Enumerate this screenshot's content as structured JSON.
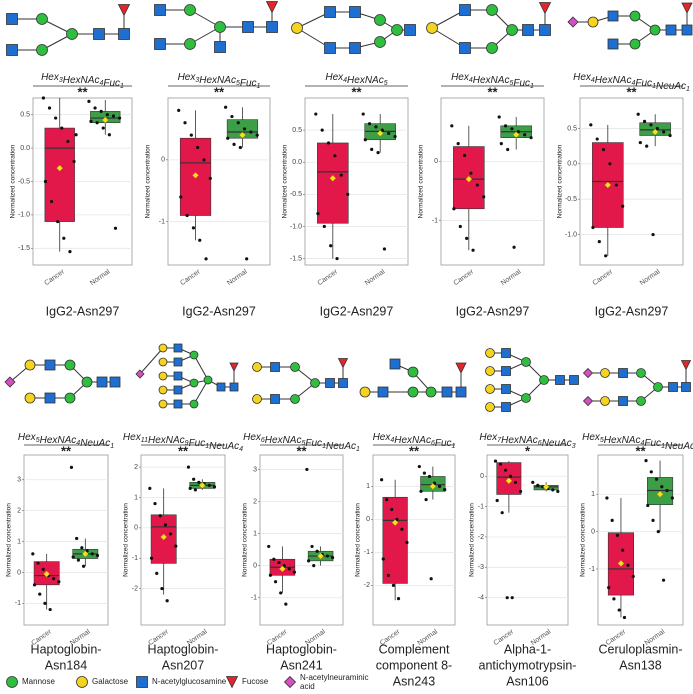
{
  "chart_data": [
    {
      "type": "box",
      "title": "Hex3HexNAc4Fuc1",
      "significance": "**",
      "ylabel": "Normalized concentration",
      "categories": [
        "Cancer",
        "Normal"
      ],
      "colors": [
        "#e3184a",
        "#3d9e48"
      ],
      "boxes": [
        {
          "low": -1.55,
          "q1": -1.1,
          "median": 0.0,
          "q3": 0.3,
          "high": 0.75,
          "mean": -0.3,
          "points": [
            0.75,
            0.6,
            0.45,
            0.3,
            0.1,
            -0.2,
            -0.5,
            -0.8,
            -1.1,
            -1.35,
            -1.55,
            0.2
          ]
        },
        {
          "low": 0.2,
          "q1": 0.38,
          "median": 0.45,
          "q3": 0.55,
          "high": 0.72,
          "mean": 0.42,
          "points": [
            0.7,
            0.6,
            0.55,
            0.5,
            0.48,
            0.45,
            0.4,
            0.38,
            0.3,
            0.2,
            -1.2
          ]
        }
      ],
      "ylim": [
        -1.75,
        0.75
      ],
      "yticks": [
        -1.5,
        {
          "value": -1,
          "label": "-1.0"
        },
        -0.5,
        {
          "value": 0,
          "label": "0.0"
        },
        0.5
      ],
      "site": [
        "IgG2-Asn297"
      ]
    },
    {
      "type": "box",
      "title": "Hex3HexNAc5Fuc1",
      "significance": "**",
      "ylabel": "Normalized concentration",
      "categories": [
        "Cancer",
        "Normal"
      ],
      "colors": [
        "#e3184a",
        "#3d9e48"
      ],
      "boxes": [
        {
          "low": -1.3,
          "q1": -0.9,
          "median": -0.05,
          "q3": 0.35,
          "high": 0.8,
          "mean": -0.25,
          "points": [
            0.8,
            0.6,
            0.4,
            0.2,
            0,
            -0.3,
            -0.6,
            -0.9,
            -1.1,
            -1.3,
            -1.6
          ]
        },
        {
          "low": 0.2,
          "q1": 0.35,
          "median": 0.45,
          "q3": 0.65,
          "high": 0.85,
          "mean": 0.4,
          "points": [
            0.85,
            0.7,
            0.6,
            0.5,
            0.45,
            0.4,
            0.35,
            0.25,
            0.2,
            -1.6
          ]
        }
      ],
      "ylim": [
        -1.7,
        1.0
      ],
      "yticks": [
        -1,
        0
      ],
      "site": [
        "IgG2-Asn297"
      ]
    },
    {
      "type": "box",
      "title": "Hex4HexNAc5",
      "significance": "**",
      "ylabel": "Normalized concentration",
      "categories": [
        "Cancer",
        "Normal"
      ],
      "colors": [
        "#e3184a",
        "#3d9e48"
      ],
      "boxes": [
        {
          "low": -1.5,
          "q1": -0.95,
          "median": -0.15,
          "q3": 0.3,
          "high": 0.75,
          "mean": -0.25,
          "points": [
            0.75,
            0.5,
            0.3,
            0.1,
            -0.2,
            -0.5,
            -0.8,
            -1.0,
            -1.3,
            -1.5
          ]
        },
        {
          "low": 0.15,
          "q1": 0.35,
          "median": 0.48,
          "q3": 0.6,
          "high": 0.75,
          "mean": 0.45,
          "points": [
            0.75,
            0.6,
            0.55,
            0.5,
            0.45,
            0.4,
            0.35,
            0.2,
            0.15,
            -1.35
          ]
        }
      ],
      "ylim": [
        -1.6,
        1.0
      ],
      "yticks": [
        -1.5,
        {
          "value": -1,
          "label": "-1.0"
        },
        -0.5,
        {
          "value": 0,
          "label": "0.0"
        },
        0.5
      ],
      "site": [
        "IgG2-Asn297"
      ]
    },
    {
      "type": "box",
      "title": "Hex4HexNAc5Fuc1",
      "significance": "**",
      "ylabel": "Normalized concentration",
      "categories": [
        "Cancer",
        "Normal"
      ],
      "colors": [
        "#e3184a",
        "#3d9e48"
      ],
      "boxes": [
        {
          "low": -1.5,
          "q1": -0.8,
          "median": -0.3,
          "q3": 0.25,
          "high": 0.6,
          "mean": -0.3,
          "points": [
            0.6,
            0.3,
            0.1,
            -0.2,
            -0.4,
            -0.6,
            -0.8,
            -1.1,
            -1.3,
            -1.5
          ]
        },
        {
          "low": 0.2,
          "q1": 0.4,
          "median": 0.5,
          "q3": 0.6,
          "high": 0.75,
          "mean": 0.45,
          "points": [
            0.75,
            0.6,
            0.55,
            0.5,
            0.45,
            0.4,
            0.3,
            0.2,
            -1.45
          ]
        }
      ],
      "ylim": [
        -1.75,
        1.07
      ],
      "yticks": [
        -1,
        0
      ],
      "site": [
        "IgG2-Asn297"
      ]
    },
    {
      "type": "box",
      "title": "Hex4HexNAc4Fuc1NeuAc1",
      "significance": "**",
      "ylabel": "Normalized concentration",
      "categories": [
        "Cancer",
        "Normal"
      ],
      "colors": [
        "#e3184a",
        "#3d9e48"
      ],
      "boxes": [
        {
          "low": -1.3,
          "q1": -0.9,
          "median": -0.25,
          "q3": 0.3,
          "high": 0.55,
          "mean": -0.3,
          "points": [
            0.55,
            0.35,
            0.2,
            0,
            -0.3,
            -0.6,
            -0.9,
            -1.1,
            -1.3
          ]
        },
        {
          "low": 0.25,
          "q1": 0.4,
          "median": 0.48,
          "q3": 0.58,
          "high": 0.7,
          "mean": 0.45,
          "points": [
            0.7,
            0.6,
            0.55,
            0.5,
            0.45,
            0.4,
            0.3,
            0.25,
            -1.0
          ]
        }
      ],
      "ylim": [
        -1.43,
        0.93
      ],
      "yticks": [
        {
          "value": -1,
          "label": "-1.0"
        },
        -0.5,
        {
          "value": 0,
          "label": "0.0"
        },
        0.5
      ],
      "site": [
        "IgG2-Asn297"
      ]
    },
    {
      "type": "box",
      "title": "Hex5HexNAc4NeuAc1",
      "significance": "**",
      "ylabel": "Normalized concentration",
      "categories": [
        "Cancer",
        "Normal"
      ],
      "colors": [
        "#e3184a",
        "#3d9e48"
      ],
      "boxes": [
        {
          "low": -1.2,
          "q1": -0.4,
          "median": -0.1,
          "q3": 0.35,
          "high": 0.6,
          "mean": -0.05,
          "points": [
            0.6,
            0.3,
            0.1,
            -0.1,
            -0.2,
            -0.3,
            -0.4,
            -0.7,
            -1.0,
            -1.2
          ]
        },
        {
          "low": 0.2,
          "q1": 0.45,
          "median": 0.6,
          "q3": 0.75,
          "high": 1.1,
          "mean": 0.6,
          "points": [
            3.4,
            1.1,
            0.8,
            0.7,
            0.6,
            0.55,
            0.5,
            0.4,
            0.2
          ]
        }
      ],
      "ylim": [
        -1.7,
        3.8
      ],
      "yticks": [
        -1,
        0,
        1,
        2,
        3
      ],
      "site": [
        "Haptoglobin-",
        "Asn184"
      ]
    },
    {
      "type": "box",
      "title": "Hex11HexNAc9Fuc1NeuAc4",
      "significance": "**",
      "ylabel": "Normalized concentration",
      "categories": [
        "Cancer",
        "Normal"
      ],
      "colors": [
        "#e3184a",
        "#3d9e48"
      ],
      "boxes": [
        {
          "low": -2.2,
          "q1": -1.17,
          "median": 0.03,
          "q3": 0.43,
          "high": 1.3,
          "mean": -0.3,
          "points": [
            1.3,
            0.8,
            0.4,
            0.1,
            -0.2,
            -0.6,
            -1.0,
            -1.5,
            -2.0,
            -2.4
          ]
        },
        {
          "low": 1.25,
          "q1": 1.3,
          "median": 1.4,
          "q3": 1.5,
          "high": 1.6,
          "mean": 1.4,
          "points": [
            2.0,
            1.6,
            1.5,
            1.45,
            1.4,
            1.35,
            1.3,
            1.25
          ]
        }
      ],
      "ylim": [
        -3.2,
        2.4
      ],
      "yticks": [
        -2,
        -1,
        0,
        1,
        2
      ],
      "site": [
        "Haptoglobin-",
        "Asn207"
      ]
    },
    {
      "type": "box",
      "title": "Hex6HexNAc5Fuc1NeuAc1",
      "significance": "**",
      "ylabel": "Normalized concentration",
      "categories": [
        "Cancer",
        "Normal"
      ],
      "colors": [
        "#e3184a",
        "#3d9e48"
      ],
      "boxes": [
        {
          "low": -0.85,
          "q1": -0.3,
          "median": -0.05,
          "q3": 0.2,
          "high": 0.6,
          "mean": -0.1,
          "points": [
            0.6,
            0.2,
            0.1,
            0,
            -0.1,
            -0.2,
            -0.3,
            -0.5,
            -0.85,
            -1.2
          ]
        },
        {
          "low": 0.0,
          "q1": 0.15,
          "median": 0.3,
          "q3": 0.45,
          "high": 0.6,
          "mean": 0.3,
          "points": [
            3.0,
            0.6,
            0.45,
            0.35,
            0.3,
            0.25,
            0.15,
            0.0
          ]
        }
      ],
      "ylim": [
        -1.85,
        3.45
      ],
      "yticks": [
        -1,
        0,
        1,
        2,
        3
      ],
      "site": [
        "Haptoglobin-",
        "Asn241"
      ]
    },
    {
      "type": "box",
      "title": "Hex4HexNAc6Fuc1",
      "significance": "**",
      "ylabel": "Normalized concentration",
      "categories": [
        "Cancer",
        "Normal"
      ],
      "colors": [
        "#e3184a",
        "#3d9e48"
      ],
      "boxes": [
        {
          "low": -2.45,
          "q1": -1.94,
          "median": -0.03,
          "q3": 0.67,
          "high": 1.2,
          "mean": -0.1,
          "points": [
            1.2,
            0.6,
            0.3,
            0,
            -0.3,
            -0.7,
            -1.2,
            -1.7,
            -2.0,
            -2.4
          ]
        },
        {
          "low": 0.6,
          "q1": 0.85,
          "median": 1.05,
          "q3": 1.3,
          "high": 1.6,
          "mean": 1.0,
          "points": [
            1.6,
            1.4,
            1.3,
            1.1,
            1.0,
            0.9,
            0.85,
            0.6,
            -1.8
          ]
        }
      ],
      "ylim": [
        -3.2,
        1.95
      ],
      "yticks": [
        -2,
        -1,
        0,
        1
      ],
      "site": [
        "Complement",
        "component 8-",
        "Asn243"
      ]
    },
    {
      "type": "box",
      "title": "Hex7HexNAc6NeuAc3",
      "significance": "*",
      "ylabel": "Normalized concentration",
      "categories": [
        "Cancer",
        "Normal"
      ],
      "colors": [
        "#e3184a",
        "#3d9e48"
      ],
      "boxes": [
        {
          "low": -1.2,
          "q1": -0.6,
          "median": -0.03,
          "q3": 0.45,
          "high": 0.5,
          "mean": -0.15,
          "points": [
            0.5,
            0.4,
            0.2,
            0,
            -0.2,
            -0.5,
            -0.8,
            -1.2,
            -4.0,
            -4.0
          ]
        },
        {
          "low": -0.5,
          "q1": -0.45,
          "median": -0.35,
          "q3": -0.3,
          "high": -0.2,
          "mean": -0.35,
          "points": [
            -0.2,
            -0.3,
            -0.35,
            -0.4,
            -0.45,
            -0.5
          ]
        }
      ],
      "ylim": [
        -4.9,
        0.7
      ],
      "yticks": [
        -4,
        -3,
        -2,
        -1,
        0
      ],
      "site": [
        "Alpha-1-",
        "antichymotrypsin-",
        "Asn106"
      ]
    },
    {
      "type": "box",
      "title": "Hex5HexNAc4Fuc1NeuAc2",
      "significance": "**",
      "ylabel": "Normalized concentration",
      "categories": [
        "Cancer",
        "Normal"
      ],
      "colors": [
        "#e3184a",
        "#3d9e48"
      ],
      "boxes": [
        {
          "low": -2.3,
          "q1": -1.7,
          "median": -1.0,
          "q3": -0.03,
          "high": 0.9,
          "mean": -0.85,
          "points": [
            0.9,
            0.3,
            -0.1,
            -0.5,
            -0.9,
            -1.2,
            -1.5,
            -1.8,
            -2.1,
            -2.3
          ]
        },
        {
          "low": 0.0,
          "q1": 0.72,
          "median": 1.1,
          "q3": 1.45,
          "high": 1.9,
          "mean": 1.0,
          "points": [
            1.9,
            1.6,
            1.4,
            1.2,
            1.1,
            0.9,
            0.7,
            0.3,
            0.0,
            -1.3
          ]
        }
      ],
      "ylim": [
        -2.5,
        2.05
      ],
      "yticks": [
        -1,
        0,
        1
      ],
      "site": [
        "Ceruloplasmin-",
        "Asn138"
      ]
    }
  ],
  "legend": [
    {
      "lines": [
        "Mannose"
      ]
    },
    {
      "lines": [
        "Galactose"
      ]
    },
    {
      "lines": [
        "N-acetylglucosamine"
      ]
    },
    {
      "lines": [
        "Fucose"
      ]
    },
    {
      "lines": [
        "N-acetylneuraminic",
        "acid"
      ]
    }
  ]
}
